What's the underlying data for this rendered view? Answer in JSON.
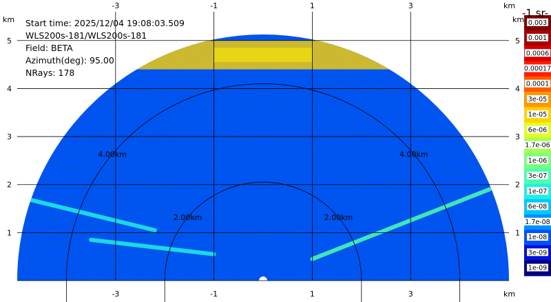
{
  "info": {
    "start_time": "Start time: 2025/12/04 19:08:03.509",
    "instrument": "WLS200s-181/WLS200s-181",
    "field": "Field: BETA",
    "azimuth": "Azimuth(deg): 95.00",
    "nrays": "NRays: 178"
  },
  "colorbar": {
    "title": "-1 sr-",
    "labels": [
      "0.003",
      "0.001",
      "0.0006",
      "0.00017",
      "0.0001",
      "3e-05",
      "1e-05",
      "6e-06",
      "1.7e-06",
      "1e-06",
      "3e-07",
      "1e-07",
      "6e-08",
      "1.7e-08",
      "1e-08",
      "3e-09",
      "1e-09"
    ],
    "colors": [
      "#7f0000",
      "#aa0000",
      "#d40000",
      "#ff1e00",
      "#ff5a00",
      "#ff9600",
      "#ffd200",
      "#e0ff20",
      "#a6ff52",
      "#7cff80",
      "#4dffb0",
      "#20f0e0",
      "#00c8ff",
      "#0090ff",
      "#0050ff",
      "#0010d8",
      "#00007f"
    ]
  },
  "chart_data": {
    "type": "heatmap",
    "title": "",
    "xlabel": "km",
    "ylabel": "km",
    "x_ticks": [
      "-3",
      "-1",
      "1",
      "3"
    ],
    "y_ticks": [
      "1",
      "2",
      "3",
      "4",
      "5"
    ],
    "xlim": [
      -5.0,
      5.0
    ],
    "ylim": [
      0.0,
      5.6
    ],
    "range_rings": [
      {
        "radius_km": 2,
        "label": "2.00km"
      },
      {
        "radius_km": 4,
        "label": "4.00km"
      }
    ],
    "max_range_km": 5.0,
    "nrays": 178,
    "azimuth_deg": 95.0,
    "field": "BETA",
    "background_level": "1e-08",
    "features": [
      {
        "name": "upper layer",
        "level": "1e-05",
        "height_km": [
          4.4,
          5.0
        ]
      },
      {
        "name": "left band 1",
        "level": "1e-07",
        "from": [
          -5.0,
          1.75
        ],
        "to": [
          -2.2,
          1.05
        ]
      },
      {
        "name": "left band 2",
        "level": "1e-07",
        "from": [
          -3.5,
          0.85
        ],
        "to": [
          -1.0,
          0.55
        ]
      },
      {
        "name": "right band",
        "level": "3e-07",
        "from": [
          1.0,
          0.45
        ],
        "to": [
          4.6,
          1.9
        ]
      }
    ]
  }
}
